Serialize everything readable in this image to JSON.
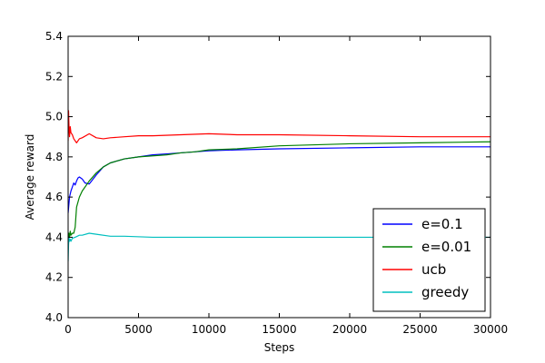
{
  "chart_data": {
    "type": "line",
    "title": "",
    "xlabel": "Steps",
    "ylabel": "Average reward",
    "xlim": [
      0,
      30000
    ],
    "ylim": [
      4.0,
      5.4
    ],
    "xticks": [
      0,
      5000,
      10000,
      15000,
      20000,
      25000,
      30000
    ],
    "xtick_labels": [
      "0",
      "5000",
      "10000",
      "15000",
      "20000",
      "25000",
      "30000"
    ],
    "yticks": [
      4.0,
      4.2,
      4.4,
      4.6,
      4.8,
      5.0,
      5.2,
      5.4
    ],
    "ytick_labels": [
      "4.0",
      "4.2",
      "4.4",
      "4.6",
      "4.8",
      "5.0",
      "5.2",
      "5.4"
    ],
    "grid": false,
    "legend_position": "bottom-right",
    "series": [
      {
        "name": "e=0.1",
        "color": "#0000ff",
        "x": [
          0,
          50,
          100,
          200,
          300,
          400,
          500,
          600,
          700,
          800,
          1000,
          1200,
          1500,
          2000,
          2500,
          3000,
          4000,
          5000,
          6000,
          7000,
          8000,
          9000,
          10000,
          12000,
          15000,
          20000,
          25000,
          30000
        ],
        "y": [
          4.52,
          4.56,
          4.6,
          4.63,
          4.65,
          4.67,
          4.66,
          4.68,
          4.695,
          4.7,
          4.69,
          4.67,
          4.665,
          4.71,
          4.75,
          4.77,
          4.79,
          4.8,
          4.81,
          4.815,
          4.82,
          4.825,
          4.83,
          4.835,
          4.84,
          4.845,
          4.85,
          4.85
        ]
      },
      {
        "name": "e=0.01",
        "color": "#008000",
        "x": [
          0,
          50,
          100,
          150,
          200,
          300,
          400,
          500,
          600,
          800,
          1000,
          1500,
          2000,
          2500,
          3000,
          4000,
          5000,
          6000,
          7000,
          8000,
          9000,
          10000,
          12000,
          15000,
          20000,
          25000,
          30000
        ],
        "y": [
          4.38,
          4.42,
          4.4,
          4.43,
          4.41,
          4.42,
          4.42,
          4.45,
          4.55,
          4.6,
          4.63,
          4.68,
          4.72,
          4.75,
          4.77,
          4.79,
          4.8,
          4.805,
          4.81,
          4.82,
          4.825,
          4.835,
          4.84,
          4.855,
          4.865,
          4.87,
          4.875
        ]
      },
      {
        "name": "ucb",
        "color": "#ff0000",
        "x": [
          0,
          30,
          60,
          100,
          150,
          200,
          300,
          400,
          600,
          800,
          1000,
          1500,
          2000,
          2500,
          3000,
          4000,
          5000,
          6000,
          8000,
          10000,
          12000,
          15000,
          20000,
          25000,
          30000
        ],
        "y": [
          4.88,
          5.03,
          4.96,
          4.9,
          4.95,
          4.92,
          4.91,
          4.89,
          4.87,
          4.89,
          4.895,
          4.915,
          4.895,
          4.89,
          4.895,
          4.9,
          4.905,
          4.905,
          4.91,
          4.915,
          4.91,
          4.91,
          4.905,
          4.9,
          4.9
        ]
      },
      {
        "name": "greedy",
        "color": "#00bfbf",
        "x": [
          0,
          30,
          60,
          100,
          150,
          200,
          300,
          500,
          800,
          1000,
          1500,
          2000,
          3000,
          4000,
          6000,
          8000,
          10000,
          15000,
          20000,
          25000,
          30000
        ],
        "y": [
          4.28,
          4.36,
          4.4,
          4.38,
          4.39,
          4.38,
          4.395,
          4.4,
          4.41,
          4.41,
          4.42,
          4.415,
          4.405,
          4.405,
          4.4,
          4.4,
          4.4,
          4.4,
          4.4,
          4.4,
          4.4
        ]
      }
    ]
  }
}
